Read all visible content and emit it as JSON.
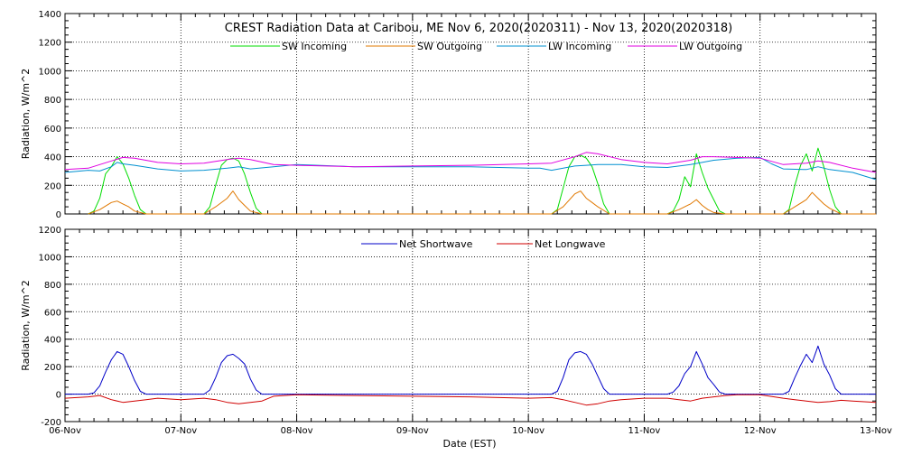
{
  "title": "CREST Radiation Data at Caribou, ME   Nov  6, 2020(2020311) - Nov 13, 2020(2020318)",
  "xlabel": "Date (EST)",
  "colors": {
    "sw_in": "#00dd00",
    "sw_out": "#e07800",
    "lw_in": "#0090d0",
    "lw_out": "#e000e0",
    "net_sw": "#0000c8",
    "net_lw": "#d00000"
  },
  "chart_data": [
    {
      "type": "line",
      "ylabel": "Radiation, W/m^2",
      "ylim": [
        0,
        1400
      ],
      "yticks": [
        0,
        200,
        400,
        600,
        800,
        1000,
        1200,
        1400
      ],
      "xlim": [
        0,
        7
      ],
      "xticks": [
        "06-Nov",
        "07-Nov",
        "08-Nov",
        "09-Nov",
        "10-Nov",
        "11-Nov",
        "12-Nov",
        "13-Nov"
      ],
      "grid": true,
      "legend_position": "top",
      "series": [
        {
          "name": "SW Incoming",
          "color_key": "sw_in",
          "x": [
            0.2,
            0.25,
            0.3,
            0.35,
            0.4,
            0.45,
            0.5,
            0.55,
            0.6,
            0.65,
            0.7,
            1.2,
            1.25,
            1.3,
            1.35,
            1.4,
            1.45,
            1.5,
            1.55,
            1.6,
            1.65,
            1.7,
            2.0,
            3.0,
            4.2,
            4.25,
            4.3,
            4.35,
            4.4,
            4.45,
            4.5,
            4.55,
            4.6,
            4.65,
            4.7,
            5.2,
            5.25,
            5.3,
            5.35,
            5.4,
            5.45,
            5.5,
            5.55,
            5.6,
            5.65,
            5.7,
            6.2,
            6.25,
            6.3,
            6.35,
            6.4,
            6.45,
            6.5,
            6.55,
            6.6,
            6.65,
            6.7,
            7.0
          ],
          "y": [
            0,
            20,
            110,
            280,
            330,
            400,
            350,
            250,
            130,
            30,
            0,
            0,
            50,
            200,
            340,
            380,
            390,
            370,
            280,
            150,
            40,
            0,
            0,
            0,
            0,
            30,
            180,
            330,
            400,
            410,
            390,
            330,
            210,
            70,
            0,
            0,
            20,
            100,
            260,
            190,
            420,
            290,
            180,
            100,
            20,
            0,
            0,
            30,
            200,
            340,
            420,
            300,
            460,
            330,
            170,
            50,
            0,
            0
          ]
        },
        {
          "name": "SW Outgoing",
          "color_key": "sw_out",
          "x": [
            0.2,
            0.3,
            0.4,
            0.45,
            0.5,
            0.55,
            0.6,
            0.7,
            1.2,
            1.3,
            1.4,
            1.45,
            1.5,
            1.55,
            1.6,
            1.7,
            2.0,
            3.0,
            4.2,
            4.3,
            4.4,
            4.45,
            4.5,
            4.55,
            4.6,
            4.7,
            5.2,
            5.3,
            5.4,
            5.45,
            5.5,
            5.55,
            5.6,
            5.7,
            6.2,
            6.3,
            6.4,
            6.45,
            6.5,
            6.55,
            6.6,
            6.7,
            7.0
          ],
          "y": [
            0,
            30,
            80,
            90,
            70,
            50,
            20,
            0,
            0,
            50,
            110,
            160,
            100,
            60,
            20,
            0,
            0,
            0,
            0,
            50,
            140,
            160,
            110,
            80,
            50,
            0,
            0,
            30,
            70,
            100,
            60,
            30,
            10,
            0,
            0,
            50,
            100,
            150,
            110,
            70,
            40,
            0,
            0
          ]
        },
        {
          "name": "LW Incoming",
          "color_key": "lw_in",
          "x": [
            0,
            0.2,
            0.3,
            0.4,
            0.45,
            0.5,
            0.6,
            0.8,
            1.0,
            1.2,
            1.4,
            1.5,
            1.6,
            1.8,
            2.0,
            2.5,
            3.0,
            3.5,
            4.0,
            4.1,
            4.2,
            4.4,
            4.5,
            4.6,
            4.8,
            5.0,
            5.2,
            5.4,
            5.5,
            5.6,
            5.8,
            6.0,
            6.1,
            6.2,
            6.4,
            6.5,
            6.6,
            6.8,
            7.0
          ],
          "y": [
            290,
            305,
            300,
            330,
            360,
            350,
            340,
            315,
            300,
            305,
            320,
            330,
            315,
            330,
            345,
            330,
            330,
            330,
            320,
            320,
            305,
            335,
            340,
            345,
            345,
            330,
            325,
            345,
            360,
            375,
            390,
            395,
            350,
            315,
            310,
            330,
            310,
            290,
            240
          ]
        },
        {
          "name": "LW Outgoing",
          "color_key": "lw_out",
          "x": [
            0,
            0.2,
            0.4,
            0.5,
            0.6,
            0.8,
            1.0,
            1.2,
            1.4,
            1.5,
            1.6,
            1.8,
            2.0,
            2.5,
            3.0,
            3.5,
            4.0,
            4.2,
            4.4,
            4.5,
            4.6,
            4.8,
            5.0,
            5.2,
            5.4,
            5.5,
            5.6,
            5.8,
            6.0,
            6.2,
            6.4,
            6.5,
            6.6,
            6.8,
            7.0
          ],
          "y": [
            310,
            320,
            370,
            395,
            390,
            360,
            350,
            355,
            380,
            390,
            380,
            345,
            340,
            330,
            335,
            340,
            350,
            355,
            400,
            430,
            420,
            380,
            360,
            350,
            375,
            400,
            400,
            395,
            390,
            345,
            355,
            370,
            360,
            320,
            290
          ]
        }
      ]
    },
    {
      "type": "line",
      "ylabel": "Radiation, W/m^2",
      "ylim": [
        -200,
        1200
      ],
      "yticks": [
        -200,
        0,
        200,
        400,
        600,
        800,
        1000,
        1200
      ],
      "xlim": [
        0,
        7
      ],
      "xticks": [
        "06-Nov",
        "07-Nov",
        "08-Nov",
        "09-Nov",
        "10-Nov",
        "11-Nov",
        "12-Nov",
        "13-Nov"
      ],
      "grid": true,
      "legend_position": "top",
      "series": [
        {
          "name": "Net Shortwave",
          "color_key": "net_sw",
          "x": [
            0,
            0.2,
            0.25,
            0.3,
            0.35,
            0.4,
            0.45,
            0.5,
            0.55,
            0.6,
            0.65,
            0.7,
            1.0,
            1.2,
            1.25,
            1.3,
            1.35,
            1.4,
            1.45,
            1.5,
            1.55,
            1.6,
            1.65,
            1.7,
            2.0,
            3.0,
            4.0,
            4.2,
            4.25,
            4.3,
            4.35,
            4.4,
            4.45,
            4.5,
            4.55,
            4.6,
            4.65,
            4.7,
            5.0,
            5.2,
            5.25,
            5.3,
            5.35,
            5.4,
            5.45,
            5.5,
            5.55,
            5.6,
            5.65,
            5.7,
            6.0,
            6.2,
            6.25,
            6.3,
            6.35,
            6.4,
            6.45,
            6.5,
            6.55,
            6.6,
            6.65,
            6.7,
            7.0
          ],
          "y": [
            0,
            0,
            10,
            60,
            160,
            250,
            310,
            290,
            200,
            100,
            20,
            0,
            0,
            0,
            30,
            120,
            230,
            280,
            290,
            260,
            220,
            110,
            30,
            0,
            0,
            0,
            0,
            0,
            20,
            120,
            250,
            300,
            310,
            290,
            220,
            130,
            40,
            0,
            0,
            0,
            15,
            60,
            150,
            200,
            310,
            220,
            120,
            70,
            15,
            0,
            0,
            0,
            20,
            120,
            210,
            290,
            230,
            350,
            220,
            140,
            40,
            0,
            0
          ]
        },
        {
          "name": "Net Longwave",
          "color_key": "net_lw",
          "x": [
            0,
            0.2,
            0.3,
            0.4,
            0.5,
            0.6,
            0.7,
            0.8,
            1.0,
            1.2,
            1.3,
            1.4,
            1.5,
            1.6,
            1.7,
            1.8,
            2.0,
            2.5,
            3.0,
            3.5,
            4.0,
            4.2,
            4.3,
            4.4,
            4.5,
            4.6,
            4.7,
            4.8,
            5.0,
            5.2,
            5.3,
            5.4,
            5.5,
            5.6,
            5.7,
            5.8,
            6.0,
            6.2,
            6.3,
            6.4,
            6.5,
            6.6,
            6.7,
            6.8,
            7.0
          ],
          "y": [
            -30,
            -20,
            -10,
            -40,
            -60,
            -50,
            -40,
            -30,
            -40,
            -30,
            -40,
            -60,
            -70,
            -60,
            -50,
            -15,
            -5,
            -10,
            -15,
            -20,
            -30,
            -25,
            -40,
            -60,
            -80,
            -70,
            -50,
            -40,
            -30,
            -30,
            -40,
            -50,
            -30,
            -20,
            -10,
            -5,
            -5,
            -30,
            -40,
            -50,
            -60,
            -55,
            -45,
            -50,
            -60
          ]
        }
      ]
    }
  ]
}
